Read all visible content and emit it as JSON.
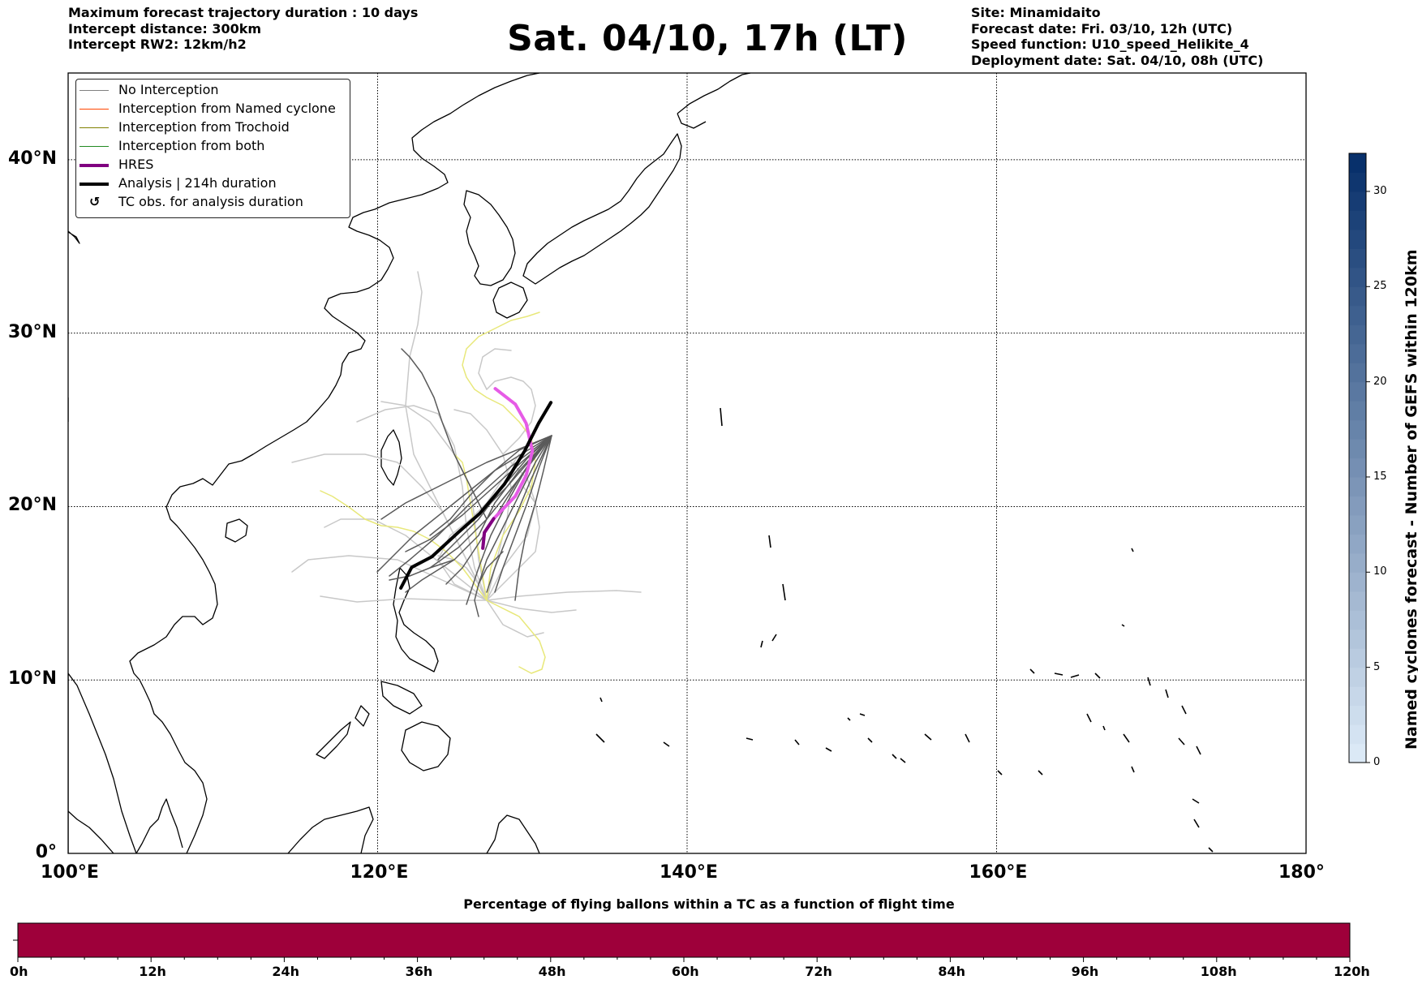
{
  "header_left": [
    "Maximum forecast trajectory duration : 10 days",
    "Intercept distance: 300km",
    "Intercept RW2: 12km/h2"
  ],
  "title": "Sat. 04/10, 17h (LT)",
  "header_right": [
    "Site: Minamidaito",
    "Forecast date: Fri. 03/10, 12h (UTC)",
    "Speed function: U10_speed_Helikite_4",
    "Deployment date: Sat. 04/10, 08h (UTC)"
  ],
  "legend": [
    {
      "label": "No Interception",
      "color": "#808080",
      "style": "thin"
    },
    {
      "label": "Interception from Named cyclone",
      "color": "#ff4500",
      "style": "thin"
    },
    {
      "label": "Interception from Trochoid",
      "color": "#808000",
      "style": "thin"
    },
    {
      "label": "Interception from both",
      "color": "#228b22",
      "style": "thin"
    },
    {
      "label": "HRES",
      "color": "#800080",
      "style": "thick"
    },
    {
      "label": "Analysis | 214h duration",
      "color": "#000000",
      "style": "thick"
    },
    {
      "label": "TC obs. for analysis duration",
      "color": "#000000",
      "style": "marker"
    }
  ],
  "map": {
    "lon_range": [
      100,
      180
    ],
    "lat_range": [
      0,
      45
    ],
    "lat_ticks": [
      {
        "value": 0,
        "label": "0°"
      },
      {
        "value": 10,
        "label": "10°N"
      },
      {
        "value": 20,
        "label": "20°N"
      },
      {
        "value": 30,
        "label": "30°N"
      },
      {
        "value": 40,
        "label": "40°N"
      }
    ],
    "lon_ticks": [
      {
        "value": 100,
        "label": "100°E"
      },
      {
        "value": 120,
        "label": "120°E"
      },
      {
        "value": 140,
        "label": "140°E"
      },
      {
        "value": 160,
        "label": "160°E"
      },
      {
        "value": 180,
        "label": "180°"
      }
    ],
    "grid_lon": [
      120,
      140,
      160
    ],
    "grid_lat": [
      10,
      20,
      30,
      40
    ],
    "analysis_track": [
      [
        121.5,
        15.3
      ],
      [
        122.2,
        16.5
      ],
      [
        123.5,
        17.1
      ],
      [
        125.2,
        18.5
      ],
      [
        126.6,
        19.6
      ],
      [
        128.2,
        21.3
      ],
      [
        129.5,
        23.2
      ],
      [
        130.4,
        24.8
      ],
      [
        131.2,
        26.0
      ]
    ],
    "hres_track": [
      [
        126.8,
        17.6
      ],
      [
        126.9,
        18.5
      ],
      [
        127.5,
        19.3
      ],
      [
        128.9,
        20.6
      ],
      [
        129.6,
        21.8
      ],
      [
        130.0,
        23.2
      ],
      [
        129.6,
        24.8
      ],
      [
        128.9,
        25.9
      ],
      [
        127.6,
        26.8
      ]
    ]
  },
  "colorbar": {
    "title": "Named cyclones forecast - Number of GEFS within 120km",
    "ticks": [
      {
        "value": 0,
        "label": "0"
      },
      {
        "value": 5,
        "label": "5"
      },
      {
        "value": 10,
        "label": "10"
      },
      {
        "value": 15,
        "label": "15"
      },
      {
        "value": 20,
        "label": "20"
      },
      {
        "value": 25,
        "label": "25"
      },
      {
        "value": 30,
        "label": "30"
      }
    ],
    "max": 32,
    "low_color": "#dbe9f6",
    "high_color": "#08306b"
  },
  "bottom": {
    "title": "Percentage of flying ballons within a TC as a function of flight time",
    "bar_color": "#9e003a",
    "ticks": [
      "0h",
      "12h",
      "24h",
      "36h",
      "48h",
      "60h",
      "72h",
      "84h",
      "96h",
      "108h",
      "120h"
    ]
  }
}
